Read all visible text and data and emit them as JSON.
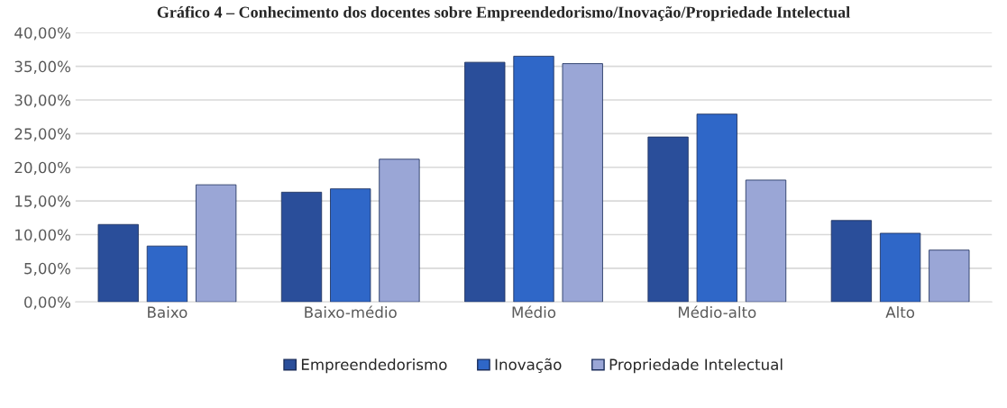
{
  "chart_data": {
    "type": "bar",
    "title": "Gráfico 4 – Conhecimento dos docentes sobre Empreendedorismo/Inovação/Propriedade Intelectual",
    "categories": [
      "Baixo",
      "Baixo-médio",
      "Médio",
      "Médio-alto",
      "Alto"
    ],
    "series": [
      {
        "name": "Empreendedorismo",
        "color": "#2a4e9a",
        "values": [
          11.5,
          16.3,
          35.6,
          24.5,
          12.1
        ]
      },
      {
        "name": "Inovação",
        "color": "#2f67c8",
        "values": [
          8.3,
          16.8,
          36.5,
          27.9,
          10.2
        ]
      },
      {
        "name": "Propriedade Intelectual",
        "color": "#9aa6d6",
        "values": [
          17.4,
          21.2,
          35.4,
          18.1,
          7.7
        ]
      }
    ],
    "ylim": [
      0,
      40
    ],
    "yticks": [
      {
        "value": 0,
        "label": "0,00%"
      },
      {
        "value": 5,
        "label": "5,00%"
      },
      {
        "value": 10,
        "label": "10,00%"
      },
      {
        "value": 15,
        "label": "15,00%"
      },
      {
        "value": 20,
        "label": "20,00%"
      },
      {
        "value": 25,
        "label": "25,00%"
      },
      {
        "value": 30,
        "label": "30,00%"
      },
      {
        "value": 35,
        "label": "35,00%"
      },
      {
        "value": 40,
        "label": "40,00%"
      }
    ],
    "grid": "y",
    "legend": "bottom"
  }
}
